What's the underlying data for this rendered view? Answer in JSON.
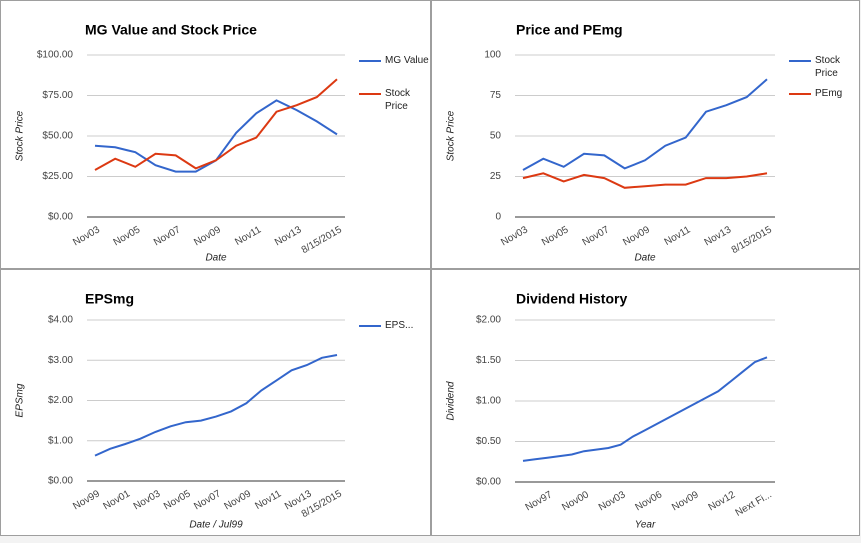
{
  "chart_data": [
    {
      "type": "line",
      "title": "MG Value and Stock Price",
      "y_label": "Stock Price",
      "x_label": "Date",
      "categories": [
        "Nov03",
        null,
        "Nov05",
        null,
        "Nov07",
        null,
        "Nov09",
        null,
        "Nov11",
        null,
        "Nov13",
        null,
        "8/15/2015"
      ],
      "series": [
        {
          "name": "MG Value",
          "color": "#3366cc",
          "values": [
            44,
            43,
            40,
            32,
            28,
            28,
            35,
            52,
            64,
            72,
            66,
            59,
            51
          ]
        },
        {
          "name": "Stock Price",
          "color": "#dc3912",
          "values": [
            29,
            36,
            31,
            39,
            38,
            30,
            35,
            44,
            49,
            65,
            69,
            74,
            85
          ]
        }
      ],
      "ylim": [
        0,
        100
      ],
      "yticks": [
        {
          "value": 0,
          "label": "$0.00"
        },
        {
          "value": 25,
          "label": "$25.00"
        },
        {
          "value": 50,
          "label": "$50.00"
        },
        {
          "value": 75,
          "label": "$75.00"
        },
        {
          "value": 100,
          "label": "$100.00"
        }
      ],
      "grid": true,
      "legend": "right"
    },
    {
      "type": "line",
      "title": "Price and PEmg",
      "y_label": "Stock Price",
      "x_label": "Date",
      "categories": [
        "Nov03",
        null,
        "Nov05",
        null,
        "Nov07",
        null,
        "Nov09",
        null,
        "Nov11",
        null,
        "Nov13",
        null,
        "8/15/2015"
      ],
      "series": [
        {
          "name": "Stock Price",
          "color": "#3366cc",
          "values": [
            29,
            36,
            31,
            39,
            38,
            30,
            35,
            44,
            49,
            65,
            69,
            74,
            85
          ]
        },
        {
          "name": "PEmg",
          "color": "#dc3912",
          "values": [
            24,
            27,
            22,
            26,
            24,
            18,
            19,
            20,
            20,
            24,
            24,
            25,
            27
          ]
        }
      ],
      "ylim": [
        0,
        100
      ],
      "yticks": [
        0,
        25,
        50,
        75,
        100
      ],
      "grid": true,
      "legend": "right"
    },
    {
      "type": "line",
      "title": "EPSmg",
      "y_label": "EPSmg",
      "x_label": "Date / Jul99",
      "categories": [
        "Nov99",
        null,
        "Nov01",
        null,
        "Nov03",
        null,
        "Nov05",
        null,
        "Nov07",
        null,
        "Nov09",
        null,
        "Nov11",
        null,
        "Nov13",
        null,
        "8/15/2015"
      ],
      "series": [
        {
          "name": "EPS...",
          "color": "#3366cc",
          "values": [
            0.63,
            0.8,
            0.92,
            1.05,
            1.22,
            1.36,
            1.46,
            1.5,
            1.6,
            1.73,
            1.93,
            2.25,
            2.5,
            2.75,
            2.88,
            3.06,
            3.13
          ]
        }
      ],
      "ylim": [
        0,
        4
      ],
      "yticks": [
        {
          "value": 0,
          "label": "$0.00"
        },
        {
          "value": 1,
          "label": "$1.00"
        },
        {
          "value": 2,
          "label": "$2.00"
        },
        {
          "value": 3,
          "label": "$3.00"
        },
        {
          "value": 4,
          "label": "$4.00"
        }
      ],
      "grid": true,
      "legend": "right"
    },
    {
      "type": "line",
      "title": "Dividend History",
      "y_label": "Dividend",
      "x_label": "Year",
      "categories": [
        null,
        null,
        "Nov97",
        null,
        null,
        "Nov00",
        null,
        null,
        "Nov03",
        null,
        null,
        "Nov06",
        null,
        null,
        "Nov09",
        null,
        null,
        "Nov12",
        null,
        null,
        "Next Fi..."
      ],
      "series": [
        {
          "color": "#3366cc",
          "values": [
            0.26,
            0.28,
            0.3,
            0.32,
            0.34,
            0.38,
            0.4,
            0.42,
            0.46,
            0.56,
            0.64,
            0.72,
            0.8,
            0.88,
            0.96,
            1.04,
            1.12,
            1.24,
            1.36,
            1.48,
            1.54
          ]
        }
      ],
      "ylim": [
        0,
        2
      ],
      "yticks": [
        {
          "value": 0,
          "label": "$0.00"
        },
        {
          "value": 0.5,
          "label": "$0.50"
        },
        {
          "value": 1,
          "label": "$1.00"
        },
        {
          "value": 1.5,
          "label": "$1.50"
        },
        {
          "value": 2,
          "label": "$2.00"
        }
      ],
      "grid": true
    }
  ]
}
